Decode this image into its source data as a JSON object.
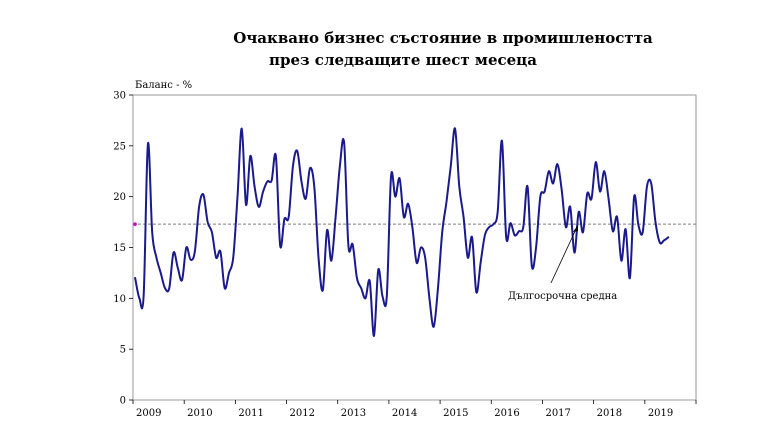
{
  "chart_data": {
    "type": "line",
    "title_line1": "Очаквано бизнес състояние в промишлеността",
    "title_line2": "през следващите шест месеца",
    "ylabel": "Баланс - %",
    "ylim": [
      0,
      30
    ],
    "yticks": [
      0,
      5,
      10,
      15,
      20,
      25,
      30
    ],
    "xlabels": [
      "2009",
      "2010",
      "2011",
      "2012",
      "2013",
      "2014",
      "2015",
      "2016",
      "2017",
      "2018",
      "2019"
    ],
    "x_start_year": 2009,
    "grid": false,
    "long_term_average": 17.3,
    "average_label": "Дългосрочна средна",
    "colors": {
      "series": "#1a1a8c",
      "average": "#7f7f7f",
      "marker": "#cc00cc"
    },
    "series": [
      {
        "values": [
          12.0,
          10.0,
          10.3,
          25.2,
          16.5,
          14.0,
          12.5,
          11.0,
          11.0,
          14.5,
          13.0,
          11.8,
          15.0,
          13.8,
          14.6,
          19.0,
          20.2,
          17.5,
          16.5,
          14.0,
          14.6,
          11.0,
          12.5,
          14.0,
          20.0,
          26.7,
          19.2,
          24.0,
          21.0,
          19.0,
          20.5,
          21.5,
          21.6,
          24.0,
          15.2,
          17.8,
          18.0,
          23.0,
          24.5,
          21.5,
          19.8,
          22.8,
          21.0,
          14.0,
          10.8,
          16.7,
          13.7,
          18.0,
          23.0,
          25.3,
          15.2,
          15.3,
          12.0,
          11.0,
          10.0,
          11.7,
          6.3,
          12.8,
          10.2,
          10.2,
          22.0,
          20.0,
          21.8,
          18.0,
          19.3,
          17.0,
          13.5,
          15.0,
          14.0,
          10.0,
          7.2,
          11.0,
          16.5,
          19.5,
          23.0,
          26.7,
          21.0,
          18.0,
          14.0,
          16.0,
          10.6,
          13.5,
          16.2,
          17.0,
          17.3,
          18.5,
          25.5,
          16.0,
          17.4,
          16.2,
          16.6,
          17.0,
          21.0,
          13.2,
          15.0,
          20.0,
          20.5,
          22.5,
          21.3,
          23.2,
          20.7,
          17.0,
          19.0,
          14.5,
          18.5,
          16.5,
          20.3,
          19.8,
          23.4,
          20.5,
          22.5,
          19.8,
          16.6,
          18.0,
          13.7,
          16.8,
          12.0,
          20.0,
          17.2,
          16.5,
          21.0,
          21.3,
          17.5,
          15.5,
          15.7,
          16.0
        ]
      }
    ]
  }
}
